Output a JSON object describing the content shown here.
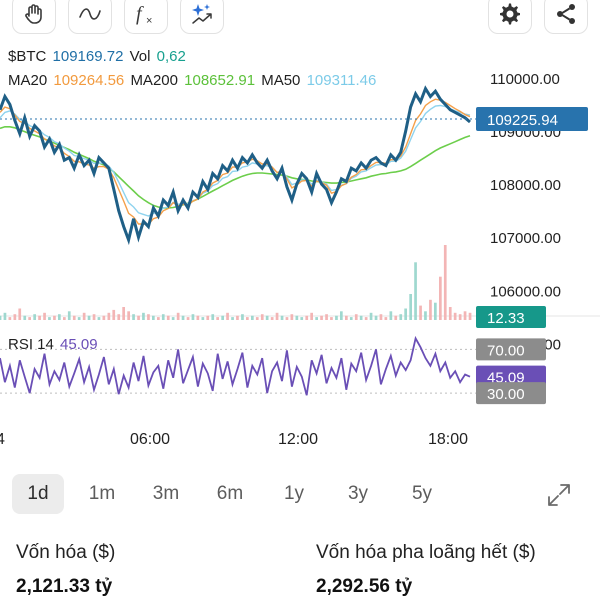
{
  "toolbar": {
    "tools": [
      {
        "name": "hand-tool-button",
        "icon": "hand-icon"
      },
      {
        "name": "draw-tool-button",
        "icon": "squiggle-icon"
      },
      {
        "name": "indicator-tool-button",
        "icon": "function-icon"
      },
      {
        "name": "magic-tool-button",
        "icon": "sparkle-icon"
      }
    ],
    "actions": [
      {
        "name": "settings-button",
        "icon": "gear-icon"
      },
      {
        "name": "share-button",
        "icon": "share-icon"
      }
    ]
  },
  "legend": {
    "symbol": "$BTC",
    "price": "109169.72",
    "vol_label": "Vol",
    "vol_value": "0,62",
    "ma20_label": "MA20",
    "ma20_value": "109264.56",
    "ma200_label": "MA200",
    "ma200_value": "108652.91",
    "ma50_label": "MA50",
    "ma50_value": "109311.46",
    "rsi_label": "RSI 14",
    "rsi_value": "45.09"
  },
  "colors": {
    "price_line": "#1f5f86",
    "ma20": "#f5a04a",
    "ma50": "#8fd3ee",
    "ma200": "#6cce4b",
    "rsi": "#6a4fb6",
    "price_badge": "#2873ad",
    "volume_badge": "#16988a",
    "gray_badge": "#8c8c8c",
    "rsi_badge": "#6a4fb6"
  },
  "chart_data": {
    "type": "line",
    "title": "$BTC",
    "x_ticks": [
      "4",
      "06:00",
      "12:00",
      "18:00"
    ],
    "y_ticks": [
      "110000.00",
      "109000.00",
      "108000.00",
      "107000.00",
      "106000.00",
      "105000.00"
    ],
    "ylim": [
      104500,
      110300
    ],
    "current_price_label": "109225.94",
    "volume_label": "12.33",
    "rsi_ticks": [
      "70.00",
      "30.00"
    ],
    "rsi_current_label": "45.09",
    "rsi_ylim": [
      10,
      95
    ],
    "series": [
      {
        "name": "$BTC",
        "x": [
          0,
          1,
          2,
          3,
          4,
          5,
          6,
          7,
          8,
          9,
          10,
          11,
          12,
          13,
          14,
          15,
          16,
          17,
          18,
          19,
          20,
          21,
          22,
          23,
          24,
          25,
          26,
          27,
          28,
          29,
          30,
          31,
          32,
          33,
          34,
          35,
          36,
          37,
          38,
          39,
          40,
          41,
          42,
          43,
          44,
          45,
          46,
          47,
          48,
          49,
          50,
          51,
          52,
          53,
          54,
          55,
          56,
          57,
          58,
          59,
          60,
          61,
          62,
          63,
          64,
          65,
          66,
          67,
          68,
          69,
          70,
          71,
          72,
          73,
          74,
          75,
          76,
          77,
          78,
          79,
          80,
          81,
          82,
          83,
          84,
          85,
          86,
          87,
          88,
          89,
          90,
          91,
          92,
          93,
          94,
          95
        ],
        "values": [
          109400,
          109650,
          109500,
          109200,
          108950,
          109250,
          108900,
          109100,
          109000,
          108700,
          108850,
          108600,
          108750,
          108450,
          108500,
          108300,
          108550,
          108350,
          108450,
          108200,
          108500,
          108400,
          108300,
          107900,
          107500,
          107200,
          106950,
          107350,
          107000,
          107300,
          107200,
          107550,
          107400,
          107700,
          107600,
          107850,
          107500,
          107700,
          107550,
          107850,
          107750,
          108050,
          107900,
          108200,
          108100,
          108350,
          108250,
          108450,
          108300,
          108500,
          108400,
          108550,
          108400,
          108300,
          108450,
          108250,
          108100,
          108300,
          107950,
          107700,
          108000,
          108200,
          108100,
          107850,
          108200,
          108000,
          107900,
          107650,
          107850,
          108100,
          108050,
          108300,
          108250,
          108400,
          108300,
          108450,
          108500,
          108400,
          108350,
          108550,
          108450,
          108600,
          109000,
          109450,
          109700,
          109550,
          109800,
          109650,
          109750,
          109600,
          109500,
          109400,
          109350,
          109300,
          109250,
          109170
        ]
      },
      {
        "name": "MA20",
        "values": [
          109350,
          109450,
          109420,
          109300,
          109180,
          109150,
          109050,
          109000,
          108950,
          108850,
          108800,
          108720,
          108680,
          108580,
          108520,
          108430,
          108420,
          108380,
          108360,
          108300,
          108330,
          108330,
          108280,
          108120,
          107900,
          107680,
          107450,
          107380,
          107250,
          107250,
          107240,
          107350,
          107380,
          107500,
          107540,
          107650,
          107590,
          107620,
          107600,
          107680,
          107720,
          107850,
          107900,
          108020,
          108070,
          108180,
          108210,
          108320,
          108320,
          108400,
          108420,
          108470,
          108440,
          108380,
          108380,
          108320,
          108220,
          108250,
          108100,
          107930,
          107980,
          108060,
          108070,
          107960,
          108060,
          108030,
          107980,
          107830,
          107860,
          107970,
          108010,
          108130,
          108180,
          108270,
          108280,
          108350,
          108410,
          108410,
          108390,
          108460,
          108460,
          108530,
          108700,
          108950,
          109200,
          109320,
          109480,
          109550,
          109600,
          109580,
          109540,
          109480,
          109420,
          109370,
          109310,
          109270
        ]
      },
      {
        "name": "MA50",
        "values": [
          109250,
          109350,
          109380,
          109320,
          109220,
          109180,
          109100,
          109060,
          109010,
          108930,
          108880,
          108800,
          108760,
          108680,
          108620,
          108540,
          108520,
          108480,
          108450,
          108390,
          108400,
          108390,
          108340,
          108220,
          108040,
          107840,
          107650,
          107570,
          107460,
          107430,
          107400,
          107450,
          107460,
          107550,
          107570,
          107660,
          107620,
          107640,
          107630,
          107690,
          107720,
          107830,
          107870,
          107970,
          108010,
          108110,
          108140,
          108240,
          108250,
          108320,
          108340,
          108400,
          108380,
          108340,
          108350,
          108300,
          108220,
          108240,
          108130,
          107990,
          108020,
          108080,
          108080,
          108000,
          108070,
          108040,
          108000,
          107880,
          107900,
          107980,
          108010,
          108110,
          108150,
          108230,
          108250,
          108310,
          108360,
          108370,
          108360,
          108430,
          108430,
          108490,
          108620,
          108840,
          109060,
          109180,
          109330,
          109410,
          109470,
          109480,
          109460,
          109420,
          109380,
          109350,
          109320,
          109300
        ]
      },
      {
        "name": "MA200",
        "values": [
          109050,
          109080,
          109080,
          109060,
          109020,
          108990,
          108950,
          108920,
          108890,
          108850,
          108810,
          108770,
          108730,
          108690,
          108650,
          108600,
          108560,
          108520,
          108480,
          108430,
          108400,
          108360,
          108300,
          108230,
          108140,
          108050,
          107960,
          107870,
          107780,
          107710,
          107650,
          107600,
          107570,
          107550,
          107550,
          107560,
          107580,
          107610,
          107640,
          107680,
          107720,
          107770,
          107820,
          107870,
          107920,
          107970,
          108020,
          108070,
          108110,
          108150,
          108180,
          108200,
          108210,
          108210,
          108200,
          108190,
          108180,
          108170,
          108150,
          108120,
          108100,
          108090,
          108080,
          108060,
          108050,
          108040,
          108030,
          108020,
          108020,
          108030,
          108040,
          108060,
          108080,
          108100,
          108120,
          108150,
          108170,
          108190,
          108200,
          108220,
          108230,
          108250,
          108280,
          108330,
          108390,
          108450,
          108510,
          108570,
          108630,
          108680,
          108720,
          108760,
          108800,
          108840,
          108880,
          108910
        ]
      }
    ],
    "volume": [
      3,
      5,
      2,
      4,
      8,
      3,
      2,
      4,
      3,
      5,
      2,
      3,
      4,
      2,
      6,
      3,
      2,
      5,
      3,
      4,
      2,
      3,
      5,
      7,
      4,
      9,
      6,
      4,
      3,
      5,
      4,
      3,
      2,
      4,
      3,
      2,
      5,
      3,
      2,
      4,
      3,
      2,
      3,
      4,
      2,
      3,
      5,
      2,
      3,
      4,
      2,
      3,
      2,
      4,
      3,
      2,
      5,
      3,
      2,
      4,
      3,
      2,
      3,
      5,
      2,
      3,
      4,
      2,
      3,
      6,
      3,
      2,
      4,
      3,
      2,
      5,
      3,
      4,
      2,
      6,
      3,
      4,
      8,
      18,
      40,
      10,
      6,
      14,
      12,
      30,
      52,
      9,
      5,
      4,
      6,
      5
    ],
    "rsi": [
      62,
      40,
      55,
      35,
      60,
      45,
      30,
      52,
      44,
      66,
      38,
      50,
      42,
      58,
      36,
      48,
      61,
      40,
      54,
      33,
      47,
      63,
      38,
      52,
      29,
      46,
      35,
      58,
      41,
      64,
      37,
      49,
      55,
      34,
      60,
      44,
      70,
      39,
      51,
      63,
      36,
      57,
      48,
      32,
      66,
      43,
      59,
      38,
      52,
      67,
      35,
      55,
      47,
      62,
      30,
      50,
      58,
      41,
      69,
      36,
      54,
      45,
      28,
      60,
      48,
      65,
      39,
      53,
      44,
      62,
      33,
      57,
      50,
      67,
      42,
      55,
      70,
      38,
      52,
      64,
      46,
      58,
      51,
      60,
      80,
      72,
      62,
      55,
      66,
      50,
      58,
      44,
      50,
      40,
      47,
      45
    ]
  },
  "timeframes": {
    "items": [
      "1d",
      "1m",
      "3m",
      "6m",
      "1y",
      "3y",
      "5y"
    ],
    "active": "1d"
  },
  "stats": {
    "market_cap_label": "Vốn hóa ($)",
    "market_cap_value": "2,121.33 tỷ",
    "fdv_label": "Vốn hóa pha loãng hết ($)",
    "fdv_value": "2,292.56 tỷ"
  }
}
